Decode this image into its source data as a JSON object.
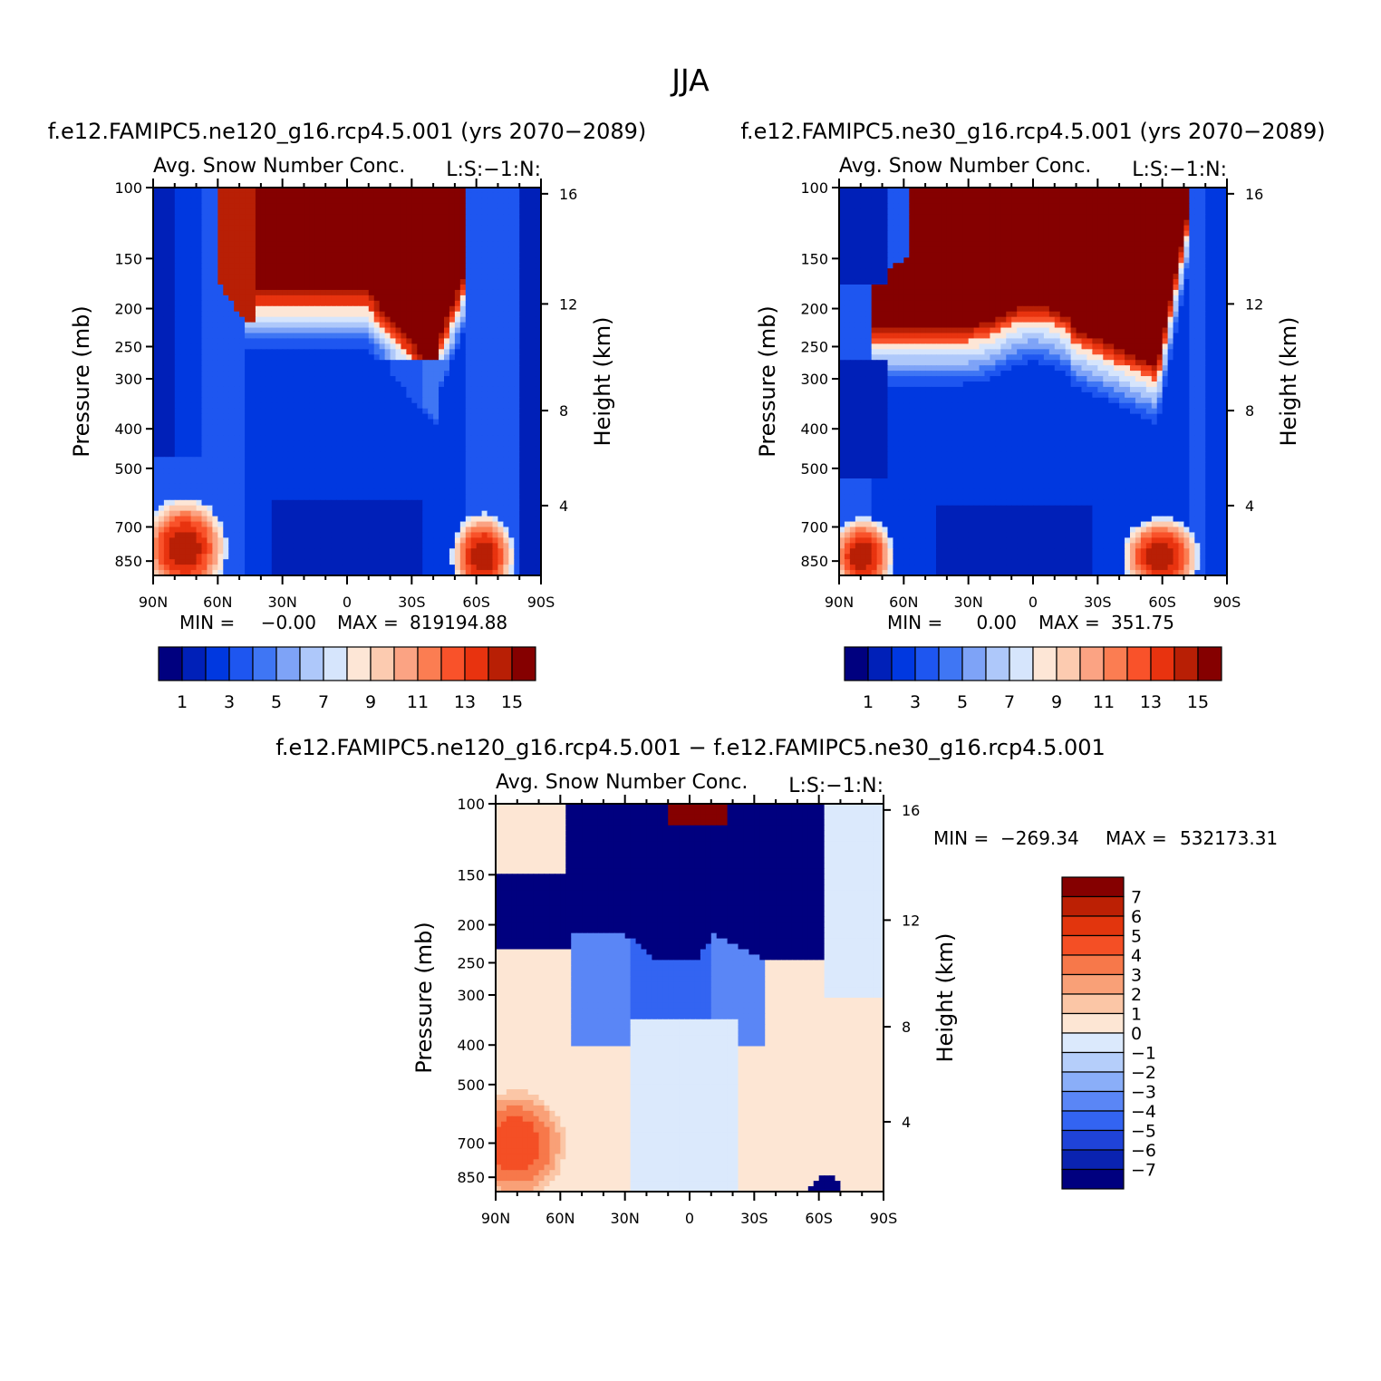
{
  "figure": {
    "title": "JJA"
  },
  "panels": [
    {
      "case_title": "f.e12.FAMIPC5.ne120_g16.rcp4.5.001 (yrs 2070−2089)",
      "variable": "Avg. Snow Number Conc.",
      "level_tag": "L:S:−1:N:",
      "y_label": "Pressure (mb)",
      "y2_label": "Height (km)",
      "pressure_ticks": [
        "100",
        "150",
        "200",
        "250",
        "300",
        "400",
        "500",
        "700",
        "850"
      ],
      "height_ticks": [
        "16",
        "12",
        "8",
        "4"
      ],
      "lat_ticks": [
        "90N",
        "60N",
        "30N",
        "0",
        "30S",
        "60S",
        "90S"
      ],
      "min_label": "MIN =",
      "min_value": "−0.00",
      "max_label": "MAX =",
      "max_value": "819194.88",
      "colorbar_labels": [
        "1",
        "3",
        "5",
        "7",
        "9",
        "11",
        "13",
        "15"
      ]
    },
    {
      "case_title": "f.e12.FAMIPC5.ne30_g16.rcp4.5.001 (yrs 2070−2089)",
      "variable": "Avg. Snow Number Conc.",
      "level_tag": "L:S:−1:N:",
      "y_label": "Pressure (mb)",
      "y2_label": "Height (km)",
      "pressure_ticks": [
        "100",
        "150",
        "200",
        "250",
        "300",
        "400",
        "500",
        "700",
        "850"
      ],
      "height_ticks": [
        "16",
        "12",
        "8",
        "4"
      ],
      "lat_ticks": [
        "90N",
        "60N",
        "30N",
        "0",
        "30S",
        "60S",
        "90S"
      ],
      "min_label": "MIN =",
      "min_value": "0.00",
      "max_label": "MAX =",
      "max_value": "351.75",
      "colorbar_labels": [
        "1",
        "3",
        "5",
        "7",
        "9",
        "11",
        "13",
        "15"
      ]
    },
    {
      "case_title": "f.e12.FAMIPC5.ne120_g16.rcp4.5.001 − f.e12.FAMIPC5.ne30_g16.rcp4.5.001",
      "variable": "Avg. Snow Number Conc.",
      "level_tag": "L:S:−1:N:",
      "y_label": "Pressure (mb)",
      "y2_label": "Height (km)",
      "pressure_ticks": [
        "100",
        "150",
        "200",
        "250",
        "300",
        "400",
        "500",
        "700",
        "850"
      ],
      "height_ticks": [
        "16",
        "12",
        "8",
        "4"
      ],
      "lat_ticks": [
        "90N",
        "60N",
        "30N",
        "0",
        "30S",
        "60S",
        "90S"
      ],
      "min_label": "MIN =",
      "min_value": "−269.34",
      "max_label": "MAX =",
      "max_value": "532173.31",
      "colorbar_labels": [
        "7",
        "6",
        "5",
        "4",
        "3",
        "2",
        "1",
        "0",
        "−1",
        "−2",
        "−3",
        "−4",
        "−5",
        "−6",
        "−7"
      ]
    }
  ],
  "colors": {
    "seq16": [
      "#00007f",
      "#0020b8",
      "#0038e0",
      "#1e56f0",
      "#3f76f4",
      "#7ea3f7",
      "#aec8fa",
      "#d6e5fc",
      "#fde6d6",
      "#fccbb0",
      "#fba383",
      "#fb7d52",
      "#f9522a",
      "#e8330f",
      "#b81f05",
      "#850000"
    ],
    "diff16": [
      "#00007f",
      "#0a23b0",
      "#1f43d8",
      "#3364f2",
      "#5a86f6",
      "#8aaef8",
      "#b5cefa",
      "#dbe9fc",
      "#fde6d4",
      "#fbc6a6",
      "#f9a077",
      "#f7784a",
      "#f44f25",
      "#e2350d",
      "#bc2004",
      "#850000"
    ]
  },
  "chart_data": [
    {
      "type": "heatmap",
      "title": "Avg. Snow Number Conc.",
      "subtitle": "f.e12.FAMIPC5.ne120_g16.rcp4.5.001 (yrs 2070−2089)",
      "xlabel": "",
      "ylabel": "Pressure (mb)",
      "y2label": "Height (km)",
      "x_ticks": [
        "90N",
        "60N",
        "30N",
        "0",
        "30S",
        "60S",
        "90S"
      ],
      "y_ticks": [
        100,
        150,
        200,
        250,
        300,
        400,
        500,
        700,
        850
      ],
      "y2_ticks": [
        16,
        12,
        8,
        4
      ],
      "levels": [
        1,
        3,
        5,
        7,
        9,
        11,
        13,
        15
      ],
      "min": -0.0,
      "max": 819194.88
    },
    {
      "type": "heatmap",
      "title": "Avg. Snow Number Conc.",
      "subtitle": "f.e12.FAMIPC5.ne30_g16.rcp4.5.001 (yrs 2070−2089)",
      "xlabel": "",
      "ylabel": "Pressure (mb)",
      "y2label": "Height (km)",
      "x_ticks": [
        "90N",
        "60N",
        "30N",
        "0",
        "30S",
        "60S",
        "90S"
      ],
      "y_ticks": [
        100,
        150,
        200,
        250,
        300,
        400,
        500,
        700,
        850
      ],
      "y2_ticks": [
        16,
        12,
        8,
        4
      ],
      "levels": [
        1,
        3,
        5,
        7,
        9,
        11,
        13,
        15
      ],
      "min": 0.0,
      "max": 351.75
    },
    {
      "type": "heatmap",
      "title": "Avg. Snow Number Conc.",
      "subtitle": "f.e12.FAMIPC5.ne120_g16.rcp4.5.001 − f.e12.FAMIPC5.ne30_g16.rcp4.5.001",
      "xlabel": "",
      "ylabel": "Pressure (mb)",
      "y2label": "Height (km)",
      "x_ticks": [
        "90N",
        "60N",
        "30N",
        "0",
        "30S",
        "60S",
        "90S"
      ],
      "y_ticks": [
        100,
        150,
        200,
        250,
        300,
        400,
        500,
        700,
        850
      ],
      "y2_ticks": [
        16,
        12,
        8,
        4
      ],
      "levels": [
        -7,
        -6,
        -5,
        -4,
        -3,
        -2,
        -1,
        0,
        1,
        2,
        3,
        4,
        5,
        6,
        7
      ],
      "min": -269.34,
      "max": 532173.31
    }
  ]
}
